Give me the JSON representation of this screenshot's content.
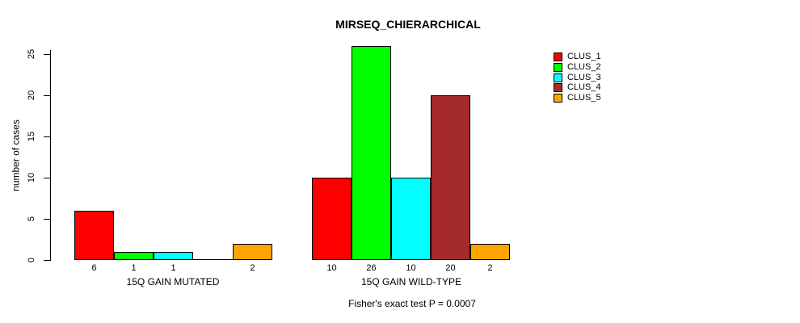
{
  "chart_data": {
    "type": "bar",
    "title": "MIRSEQ_CHIERARCHICAL",
    "ylabel": "number of cases",
    "xlabel": "",
    "ylim": [
      0,
      25
    ],
    "yticks": [
      0,
      5,
      10,
      15,
      20,
      25
    ],
    "grid": false,
    "legend_position": "top-right",
    "categories": [
      "15Q GAIN MUTATED",
      "15Q GAIN WILD-TYPE"
    ],
    "series": [
      {
        "name": "CLUS_1",
        "color": "#FF0000",
        "values": [
          6,
          10
        ]
      },
      {
        "name": "CLUS_2",
        "color": "#00FF00",
        "values": [
          1,
          26
        ]
      },
      {
        "name": "CLUS_3",
        "color": "#00FFFF",
        "values": [
          1,
          10
        ]
      },
      {
        "name": "CLUS_4",
        "color": "#A52A2A",
        "values": [
          0,
          20
        ]
      },
      {
        "name": "CLUS_5",
        "color": "#FFA500",
        "values": [
          2,
          2
        ]
      }
    ],
    "bar_border_color": "#000000",
    "annotation": "Fisher's exact test P = 0.0007",
    "background_color": "#FFFFFF",
    "text_color": "#000000"
  }
}
